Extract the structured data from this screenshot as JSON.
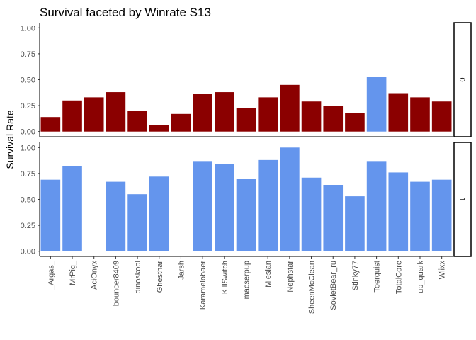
{
  "chart_data": {
    "type": "bar",
    "title": "Survival faceted by Winrate S13",
    "ylabel": "Survival Rate",
    "xlabel": "",
    "ylim": [
      0,
      1
    ],
    "yticks": [
      "0.00",
      "0.25",
      "0.50",
      "0.75",
      "1.00"
    ],
    "categories": [
      "_Argas_",
      "MrPig_",
      "AciOnyx",
      "bouncer8409",
      "dinoskool",
      "Ghesthar",
      "Jarsh",
      "Karamelobaer",
      "KillSwitch",
      "macserpup",
      "Miesian",
      "Nephstar",
      "SheenMcClean",
      "SovietBear_ru",
      "Stinky77",
      "Toerquist",
      "TotalCore",
      "up_quark",
      "Wlixx"
    ],
    "facets": [
      {
        "label": "0",
        "values": [
          0.14,
          0.3,
          0.33,
          0.38,
          0.2,
          0.06,
          0.17,
          0.36,
          0.38,
          0.23,
          0.33,
          0.45,
          0.29,
          0.25,
          0.18,
          0.53,
          0.37,
          0.33,
          0.29
        ],
        "colors": [
          "#8b0000",
          "#8b0000",
          "#8b0000",
          "#8b0000",
          "#8b0000",
          "#8b0000",
          "#8b0000",
          "#8b0000",
          "#8b0000",
          "#8b0000",
          "#8b0000",
          "#8b0000",
          "#8b0000",
          "#8b0000",
          "#8b0000",
          "#6495ed",
          "#8b0000",
          "#8b0000",
          "#8b0000"
        ]
      },
      {
        "label": "1",
        "values": [
          0.69,
          0.82,
          null,
          0.67,
          0.55,
          0.72,
          null,
          0.87,
          0.84,
          0.7,
          0.88,
          1.0,
          0.71,
          0.64,
          0.53,
          0.87,
          0.76,
          0.67,
          0.69
        ],
        "colors": [
          "#6495ed",
          "#6495ed",
          "#6495ed",
          "#6495ed",
          "#6495ed",
          "#6495ed",
          "#6495ed",
          "#6495ed",
          "#6495ed",
          "#6495ed",
          "#6495ed",
          "#6495ed",
          "#6495ed",
          "#6495ed",
          "#6495ed",
          "#6495ed",
          "#6495ed",
          "#6495ed",
          "#6495ed"
        ]
      }
    ],
    "grid": false,
    "legend": "none"
  }
}
